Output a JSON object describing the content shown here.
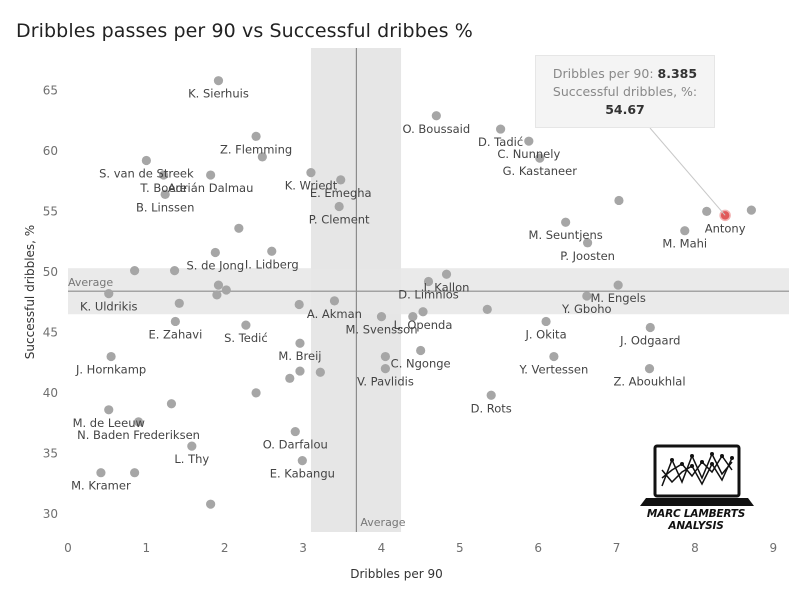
{
  "chart_data": {
    "type": "scatter",
    "title": "Dribbles passes per 90 vs Successful dribbes %",
    "xlabel": "Dribbles per 90",
    "ylabel": "Successful dribbles, %",
    "xlim": [
      0,
      9.2
    ],
    "ylim": [
      28.5,
      68.5
    ],
    "xticks": [
      0,
      1,
      2,
      3,
      4,
      5,
      6,
      7,
      8,
      9
    ],
    "yticks": [
      30,
      35,
      40,
      45,
      50,
      55,
      60,
      65
    ],
    "grid": false,
    "average_x": 3.68,
    "average_y": 48.4,
    "average_label": "Average",
    "band_x": [
      3.1,
      4.25
    ],
    "band_y": [
      46.5,
      50.3
    ],
    "highlight_color": "#e05a5a",
    "point_color": "#a6a6a6",
    "points": [
      {
        "x": 1.92,
        "y": 65.8,
        "label": "K. Sierhuis"
      },
      {
        "x": 4.7,
        "y": 62.9,
        "label": "O. Boussaid"
      },
      {
        "x": 5.52,
        "y": 61.8,
        "label": "D. Tadić"
      },
      {
        "x": 5.88,
        "y": 60.8,
        "label": "C. Nunnely"
      },
      {
        "x": 2.4,
        "y": 61.2,
        "label": "Z. Flemming"
      },
      {
        "x": 2.48,
        "y": 59.5,
        "label": ""
      },
      {
        "x": 6.02,
        "y": 59.4,
        "label": "G. Kastaneer"
      },
      {
        "x": 1.0,
        "y": 59.2,
        "label": "S. van de Streek"
      },
      {
        "x": 1.22,
        "y": 58.0,
        "label": "T. Boere"
      },
      {
        "x": 1.82,
        "y": 58.0,
        "label": "Adrián Dalmau"
      },
      {
        "x": 3.1,
        "y": 58.2,
        "label": "K. Wriedt"
      },
      {
        "x": 3.48,
        "y": 57.6,
        "label": "E. Emegha"
      },
      {
        "x": 1.24,
        "y": 56.4,
        "label": "B. Linssen"
      },
      {
        "x": 7.03,
        "y": 55.9,
        "label": ""
      },
      {
        "x": 3.46,
        "y": 55.4,
        "label": "P. Clement"
      },
      {
        "x": 8.385,
        "y": 54.67,
        "label": "Antony",
        "highlight": true
      },
      {
        "x": 8.15,
        "y": 55.0,
        "label": ""
      },
      {
        "x": 8.72,
        "y": 55.1,
        "label": ""
      },
      {
        "x": 6.35,
        "y": 54.1,
        "label": "M. Seuntjens"
      },
      {
        "x": 7.87,
        "y": 53.4,
        "label": "M. Mahi"
      },
      {
        "x": 2.18,
        "y": 53.6,
        "label": ""
      },
      {
        "x": 6.63,
        "y": 52.4,
        "label": "P. Joosten"
      },
      {
        "x": 1.88,
        "y": 51.6,
        "label": "S. de Jong"
      },
      {
        "x": 2.6,
        "y": 51.7,
        "label": "I. Lidberg"
      },
      {
        "x": 0.85,
        "y": 50.1,
        "label": ""
      },
      {
        "x": 1.36,
        "y": 50.1,
        "label": ""
      },
      {
        "x": 4.83,
        "y": 49.8,
        "label": "I. Kallon"
      },
      {
        "x": 4.6,
        "y": 49.2,
        "label": "D. Limnios"
      },
      {
        "x": 7.02,
        "y": 48.9,
        "label": "M. Engels"
      },
      {
        "x": 1.92,
        "y": 48.9,
        "label": ""
      },
      {
        "x": 2.02,
        "y": 48.5,
        "label": ""
      },
      {
        "x": 0.52,
        "y": 48.2,
        "label": "K. Uldrikis"
      },
      {
        "x": 1.9,
        "y": 48.1,
        "label": ""
      },
      {
        "x": 6.62,
        "y": 48.0,
        "label": "Y. Gboho"
      },
      {
        "x": 1.42,
        "y": 47.4,
        "label": ""
      },
      {
        "x": 3.4,
        "y": 47.6,
        "label": "A. Akman"
      },
      {
        "x": 2.95,
        "y": 47.3,
        "label": ""
      },
      {
        "x": 4.53,
        "y": 46.7,
        "label": "L. Openda"
      },
      {
        "x": 5.35,
        "y": 46.9,
        "label": ""
      },
      {
        "x": 4.0,
        "y": 46.3,
        "label": "M. Svensson"
      },
      {
        "x": 4.4,
        "y": 46.3,
        "label": ""
      },
      {
        "x": 6.1,
        "y": 45.9,
        "label": "J. Okita"
      },
      {
        "x": 1.37,
        "y": 45.9,
        "label": "E. Zahavi"
      },
      {
        "x": 2.27,
        "y": 45.6,
        "label": "S. Tedić"
      },
      {
        "x": 7.43,
        "y": 45.4,
        "label": "J. Odgaard"
      },
      {
        "x": 2.96,
        "y": 44.1,
        "label": "M. Breij"
      },
      {
        "x": 4.5,
        "y": 43.5,
        "label": "C. Ngonge"
      },
      {
        "x": 4.05,
        "y": 43.0,
        "label": ""
      },
      {
        "x": 6.2,
        "y": 43.0,
        "label": "Y. Vertessen"
      },
      {
        "x": 0.55,
        "y": 43.0,
        "label": "J. Hornkamp"
      },
      {
        "x": 4.05,
        "y": 42.0,
        "label": "V. Pavlidis"
      },
      {
        "x": 7.42,
        "y": 42.0,
        "label": "Z. Aboukhlal"
      },
      {
        "x": 2.96,
        "y": 41.8,
        "label": ""
      },
      {
        "x": 3.22,
        "y": 41.7,
        "label": ""
      },
      {
        "x": 2.83,
        "y": 41.2,
        "label": ""
      },
      {
        "x": 2.4,
        "y": 40.0,
        "label": ""
      },
      {
        "x": 5.4,
        "y": 39.8,
        "label": "D. Rots"
      },
      {
        "x": 1.32,
        "y": 39.1,
        "label": ""
      },
      {
        "x": 0.52,
        "y": 38.6,
        "label": "M. de Leeuw"
      },
      {
        "x": 0.9,
        "y": 37.6,
        "label": "N. Baden Frederiksen"
      },
      {
        "x": 2.9,
        "y": 36.8,
        "label": "O. Darfalou"
      },
      {
        "x": 1.58,
        "y": 35.6,
        "label": "L. Thy"
      },
      {
        "x": 2.99,
        "y": 34.4,
        "label": "E. Kabangu"
      },
      {
        "x": 0.42,
        "y": 33.4,
        "label": "M. Kramer"
      },
      {
        "x": 0.85,
        "y": 33.4,
        "label": ""
      },
      {
        "x": 1.82,
        "y": 30.8,
        "label": ""
      }
    ]
  },
  "tooltip": {
    "line1_label": "Dribbles per 90: ",
    "line1_value": "8.385",
    "line2_label": "Successful dribbles, %:",
    "line2_value": "54.67"
  },
  "logo": {
    "text": "MARC LAMBERTS ANALYSIS",
    "icon": "laptop-chart-icon"
  }
}
